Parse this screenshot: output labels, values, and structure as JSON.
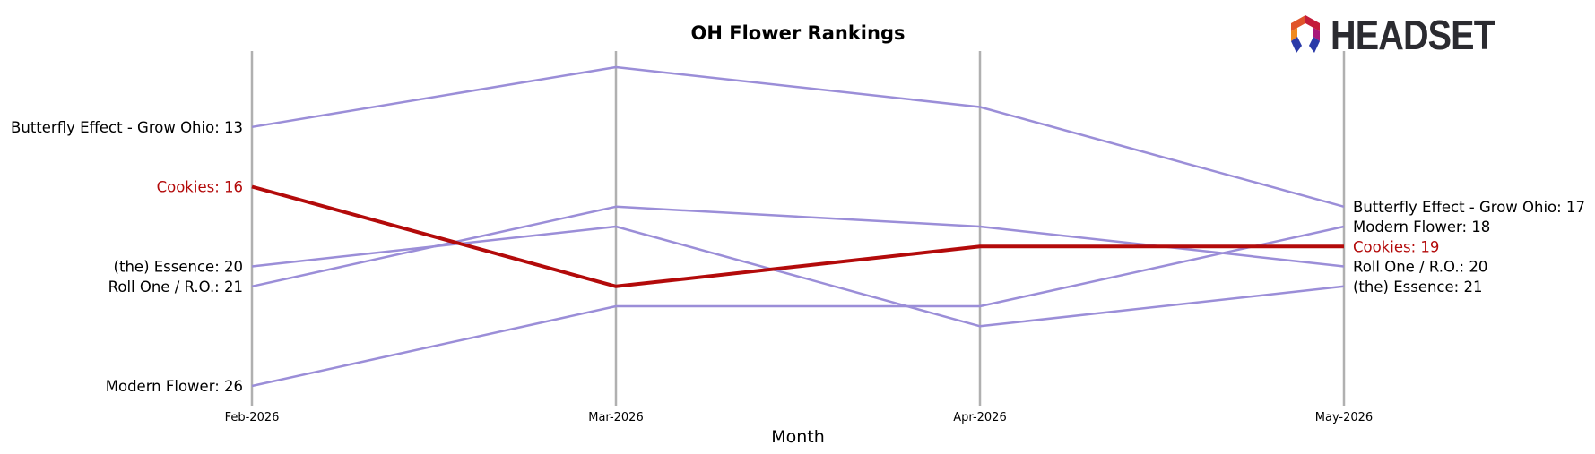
{
  "logo": {
    "text": "HEADSET"
  },
  "colors": {
    "highlight": "#b30a0a",
    "other": "#9b8ed8",
    "axis": "#b0b0b0",
    "text": "#000000"
  },
  "chart_data": {
    "type": "line",
    "title": "OH Flower Rankings",
    "xlabel": "Month",
    "ylabel": "",
    "x": [
      "Feb-2026",
      "Mar-2026",
      "Apr-2026",
      "May-2026"
    ],
    "ylim": [
      10,
      27
    ],
    "y_inverted": true,
    "highlight": "Cookies",
    "series": [
      {
        "name": "Butterfly Effect - Grow Ohio",
        "values": [
          13,
          10,
          12,
          17
        ]
      },
      {
        "name": "Cookies",
        "values": [
          16,
          21,
          19,
          19
        ]
      },
      {
        "name": "(the) Essence",
        "values": [
          20,
          18,
          23,
          21
        ]
      },
      {
        "name": "Roll One / R.O.",
        "values": [
          21,
          17,
          18,
          20
        ]
      },
      {
        "name": "Modern Flower",
        "values": [
          26,
          22,
          22,
          18
        ]
      }
    ],
    "start_labels": [
      {
        "series": "Butterfly Effect - Grow Ohio",
        "text": "Butterfly Effect - Grow Ohio: 13"
      },
      {
        "series": "Cookies",
        "text": "Cookies: 16"
      },
      {
        "series": "(the) Essence",
        "text": "(the) Essence: 20"
      },
      {
        "series": "Roll One / R.O.",
        "text": "Roll One / R.O.: 21"
      },
      {
        "series": "Modern Flower",
        "text": "Modern Flower: 26"
      }
    ],
    "end_labels": [
      {
        "series": "Butterfly Effect - Grow Ohio",
        "text": "Butterfly Effect - Grow Ohio: 17"
      },
      {
        "series": "Modern Flower",
        "text": "Modern Flower: 18"
      },
      {
        "series": "Cookies",
        "text": "Cookies: 19"
      },
      {
        "series": "Roll One / R.O.",
        "text": "Roll One / R.O.: 20"
      },
      {
        "series": "(the) Essence",
        "text": "(the) Essence: 21"
      }
    ]
  }
}
